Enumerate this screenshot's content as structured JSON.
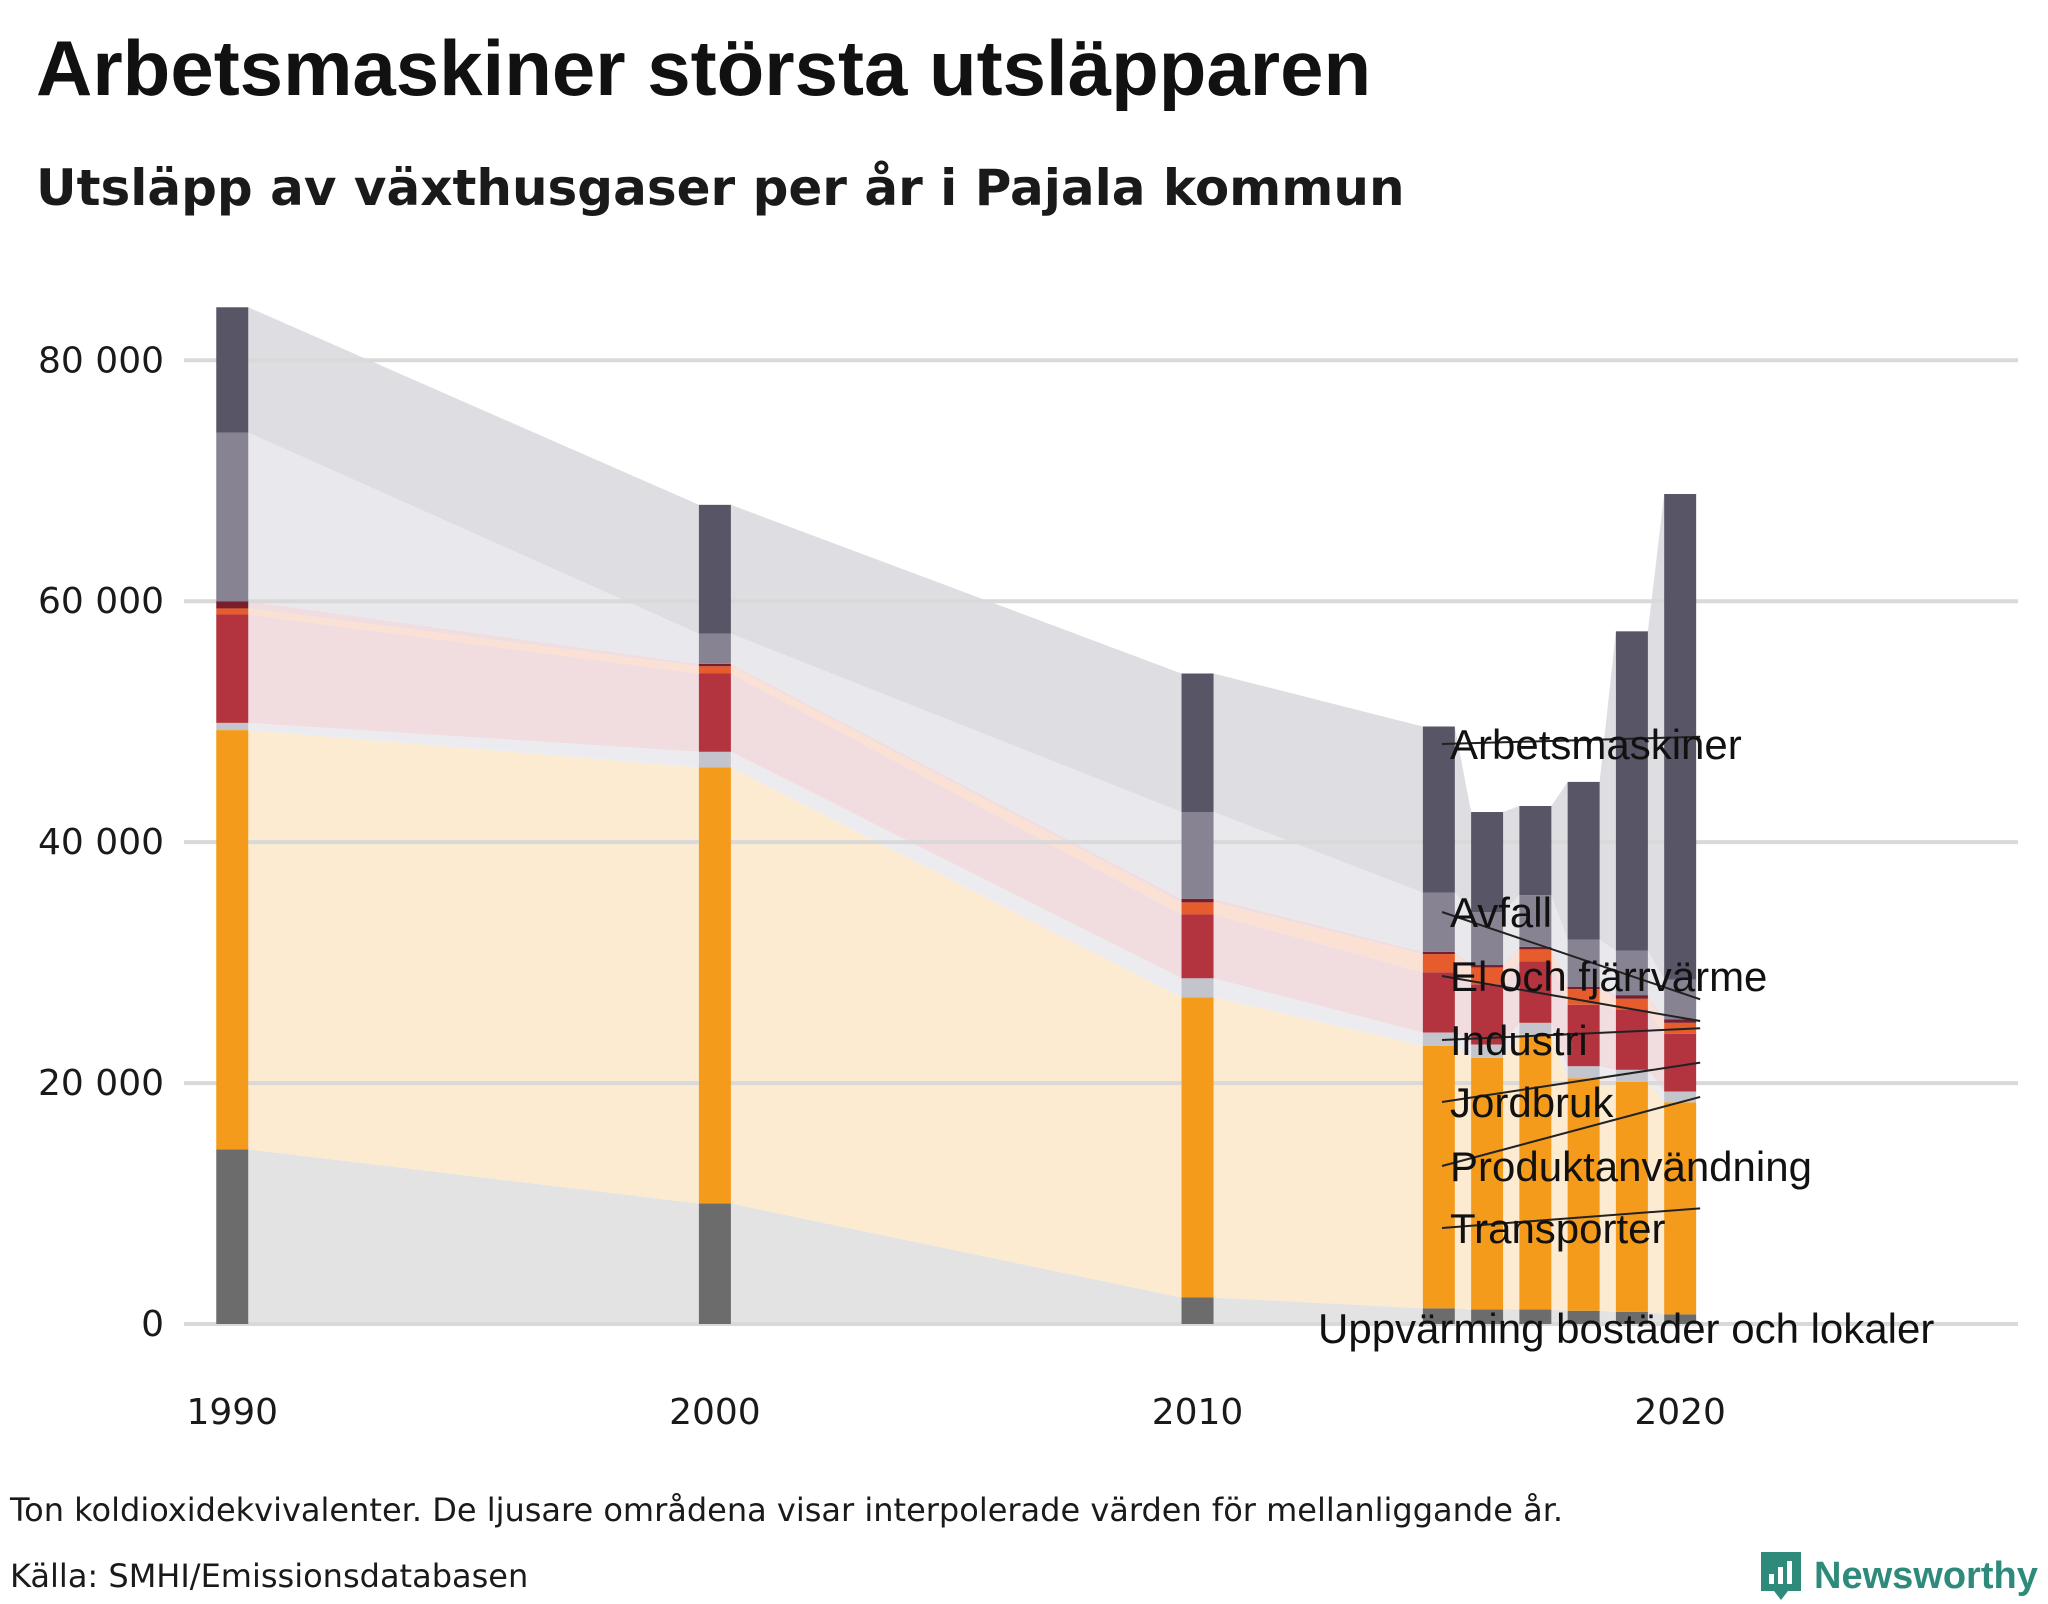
{
  "title": "Arbetsmaskiner största utsläpparen",
  "subtitle": "Utsläpp av växthusgaser per år i Pajala kommun",
  "footer": {
    "note": "Ton koldioxidekvivalenter. De ljusare områdena visar interpolerade värden för mellanliggande år.",
    "source": "Källa: SMHI/Emissionsdatabasen",
    "brand": "Newsworthy"
  },
  "icons": {
    "brand_logo": "newsworthy-logo-icon"
  },
  "chart_data": {
    "type": "bar",
    "stacked": true,
    "title": "Utsläpp av växthusgaser per år i Pajala kommun",
    "ylabel": "Ton koldioxidekvivalenter",
    "ylim": [
      0,
      86000
    ],
    "yticks": [
      0,
      20000,
      40000,
      60000,
      80000
    ],
    "ytick_labels": [
      "0",
      "20 000",
      "40 000",
      "60 000",
      "80 000"
    ],
    "xlim": [
      1989,
      2027
    ],
    "xticks": [
      1990,
      2000,
      2010,
      2020
    ],
    "xtick_labels": [
      "1990",
      "2000",
      "2010",
      "2020"
    ],
    "x": [
      1990,
      2000,
      2010,
      2015,
      2016,
      2017,
      2018,
      2019,
      2020
    ],
    "grid": "horizontal",
    "interpolated_bands_between_years": true,
    "series": [
      {
        "name": "Uppvärming bostäder och lokaler",
        "color": "#6c6c6c",
        "band_color": "#e3e3e3",
        "values": [
          14500,
          10000,
          2200,
          1300,
          1200,
          1200,
          1100,
          1000,
          800
        ]
      },
      {
        "name": "Transporter",
        "color": "#f59b1b",
        "band_color": "#fcebd0",
        "values": [
          34800,
          36200,
          24900,
          21800,
          20900,
          22800,
          19300,
          19100,
          17600
        ]
      },
      {
        "name": "Produktanvändning",
        "color": "#c4c4cc",
        "band_color": "#ececf0",
        "values": [
          600,
          1300,
          1600,
          1100,
          1100,
          1000,
          1000,
          1000,
          900
        ]
      },
      {
        "name": "Jordbruk",
        "color": "#b3343e",
        "band_color": "#f1dcdf",
        "values": [
          9000,
          6500,
          5300,
          5000,
          5000,
          5100,
          5100,
          5000,
          4800
        ]
      },
      {
        "name": "Industri",
        "color": "#e65c2c",
        "band_color": "#fbe0d4",
        "values": [
          500,
          600,
          1000,
          1500,
          1400,
          1000,
          1300,
          900,
          900
        ]
      },
      {
        "name": "El och fjärrvärme",
        "color": "#7a1e2e",
        "band_color": "#f0dde0",
        "values": [
          600,
          200,
          300,
          200,
          200,
          200,
          200,
          300,
          300
        ]
      },
      {
        "name": "Avfall",
        "color": "#888392",
        "band_color": "#e9e8ec",
        "values": [
          14000,
          2500,
          7200,
          4900,
          4400,
          4300,
          3900,
          3700,
          3300
        ]
      },
      {
        "name": "Arbetsmaskiner",
        "color": "#585566",
        "band_color": "#dedde1",
        "values": [
          10400,
          10700,
          11500,
          13800,
          8300,
          7400,
          13100,
          26500,
          40300
        ]
      }
    ]
  }
}
